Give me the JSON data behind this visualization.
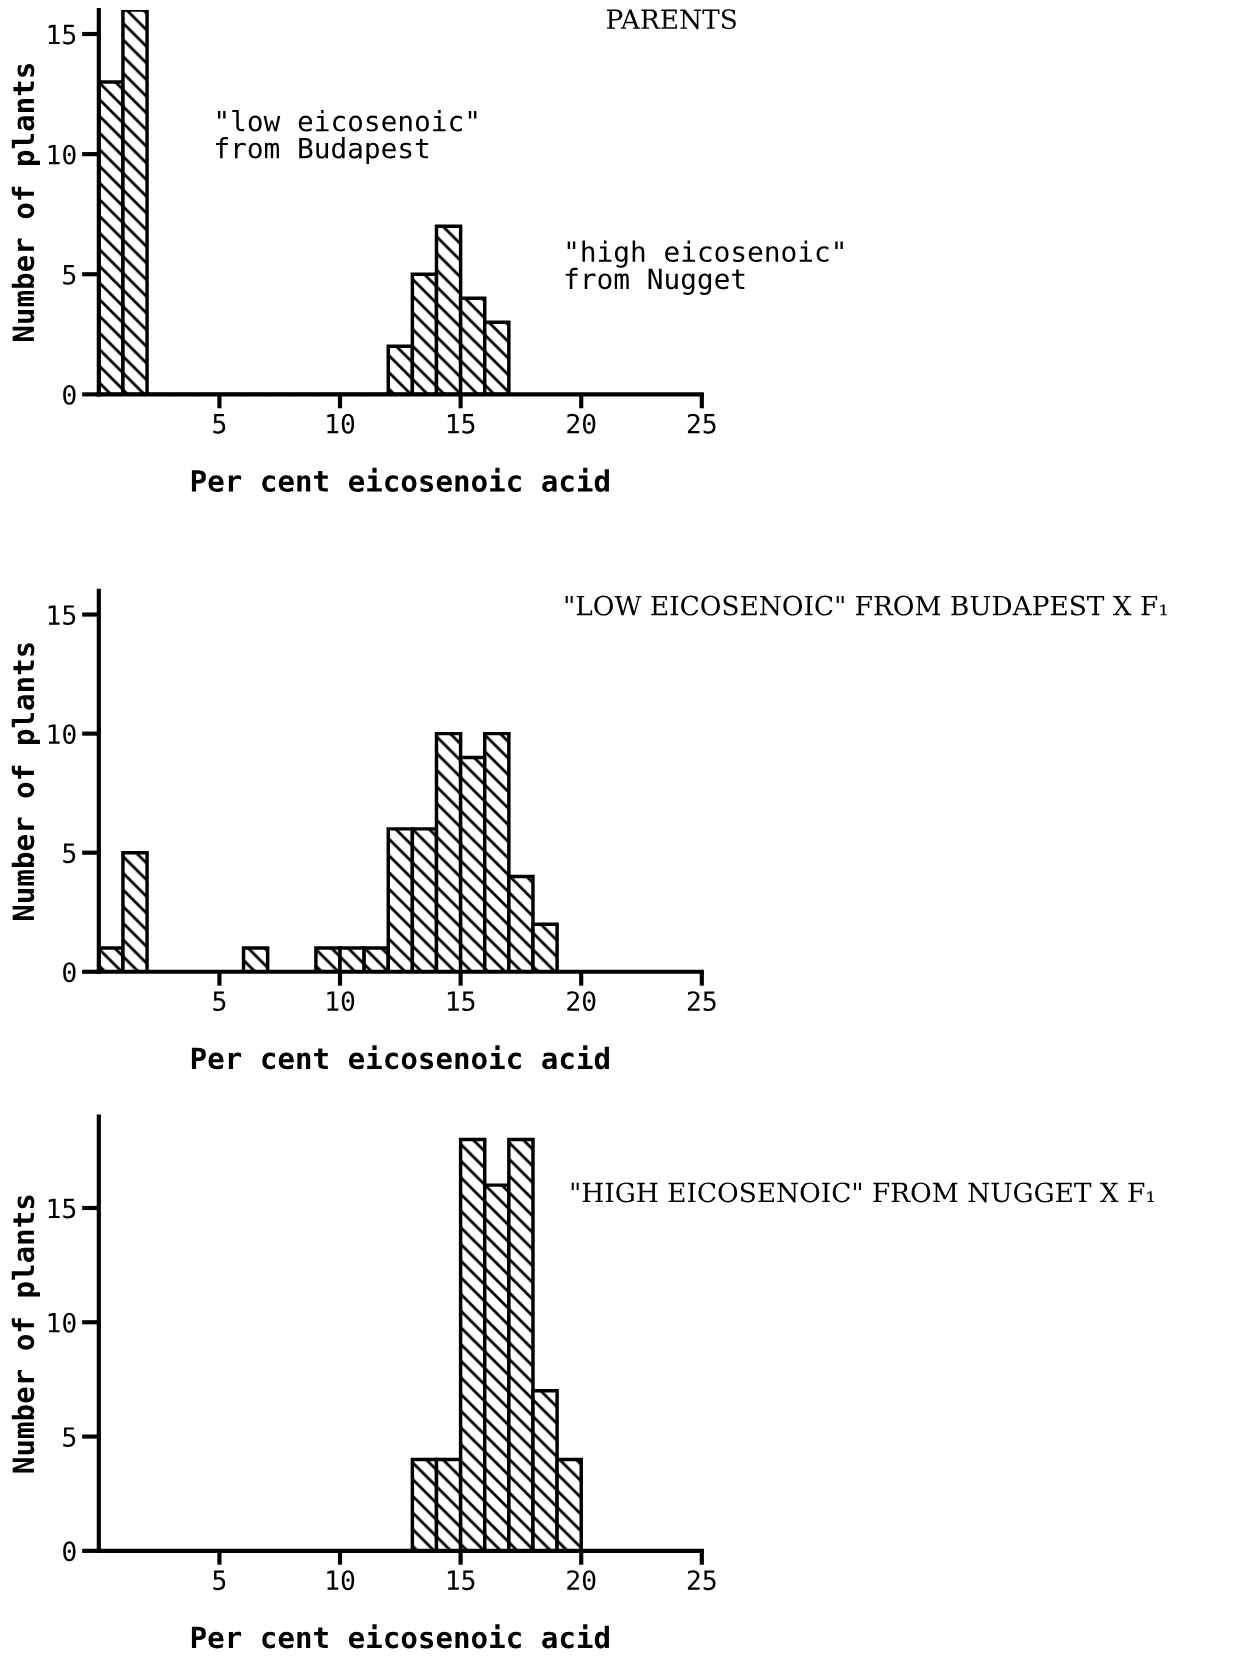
{
  "chart_data": [
    {
      "type": "histogram",
      "title": "PARENTS",
      "xlabel": "Per cent eicosenoic acid",
      "ylabel": "Number of plants",
      "color": "#000000",
      "bins": [
        0,
        1,
        2,
        3,
        4,
        5,
        6,
        7,
        8,
        9,
        10,
        11,
        12,
        13,
        14,
        15,
        16,
        17
      ],
      "values": [
        13,
        16,
        0,
        0,
        0,
        0,
        0,
        0,
        0,
        0,
        0,
        0,
        2,
        5,
        7,
        4,
        3
      ],
      "annotations": [
        "\"low eicosenoic\"\nfrom Budapest",
        "\"high eicosenoic\"\nfrom Nugget"
      ],
      "xlim": [
        0,
        25
      ],
      "ylim": [
        0,
        16
      ],
      "xticks": [
        5,
        10,
        15,
        20,
        25
      ],
      "yticks": [
        0,
        5,
        10,
        15
      ],
      "grid": false
    },
    {
      "type": "histogram",
      "title": "\"LOW EICOSENOIC\" FROM BUDAPEST X F₁",
      "xlabel": "Per cent eicosenoic acid",
      "ylabel": "Number of plants",
      "color": "#000000",
      "bins": [
        0,
        1,
        2,
        3,
        4,
        5,
        6,
        7,
        8,
        9,
        10,
        11,
        12,
        13,
        14,
        15,
        16,
        17,
        18,
        19
      ],
      "values": [
        1,
        5,
        0,
        0,
        0,
        0,
        1,
        0,
        0,
        1,
        1,
        1,
        6,
        6,
        10,
        9,
        10,
        4,
        2
      ],
      "xlim": [
        0,
        25
      ],
      "ylim": [
        0,
        16
      ],
      "xticks": [
        5,
        10,
        15,
        20,
        25
      ],
      "yticks": [
        0,
        5,
        10,
        15
      ],
      "grid": false
    },
    {
      "type": "histogram",
      "title": "\"HIGH EICOSENOIC\" FROM NUGGET X F₁",
      "xlabel": "Per cent eicosenoic acid",
      "ylabel": "Number of plants",
      "color": "#000000",
      "bins": [
        13,
        14,
        15,
        16,
        17,
        18,
        19,
        20
      ],
      "values": [
        4,
        4,
        18,
        16,
        18,
        7,
        4
      ],
      "xlim": [
        0,
        25
      ],
      "ylim": [
        0,
        19
      ],
      "xticks": [
        5,
        10,
        15,
        20,
        25
      ],
      "yticks": [
        0,
        5,
        10,
        15
      ],
      "grid": false
    }
  ]
}
